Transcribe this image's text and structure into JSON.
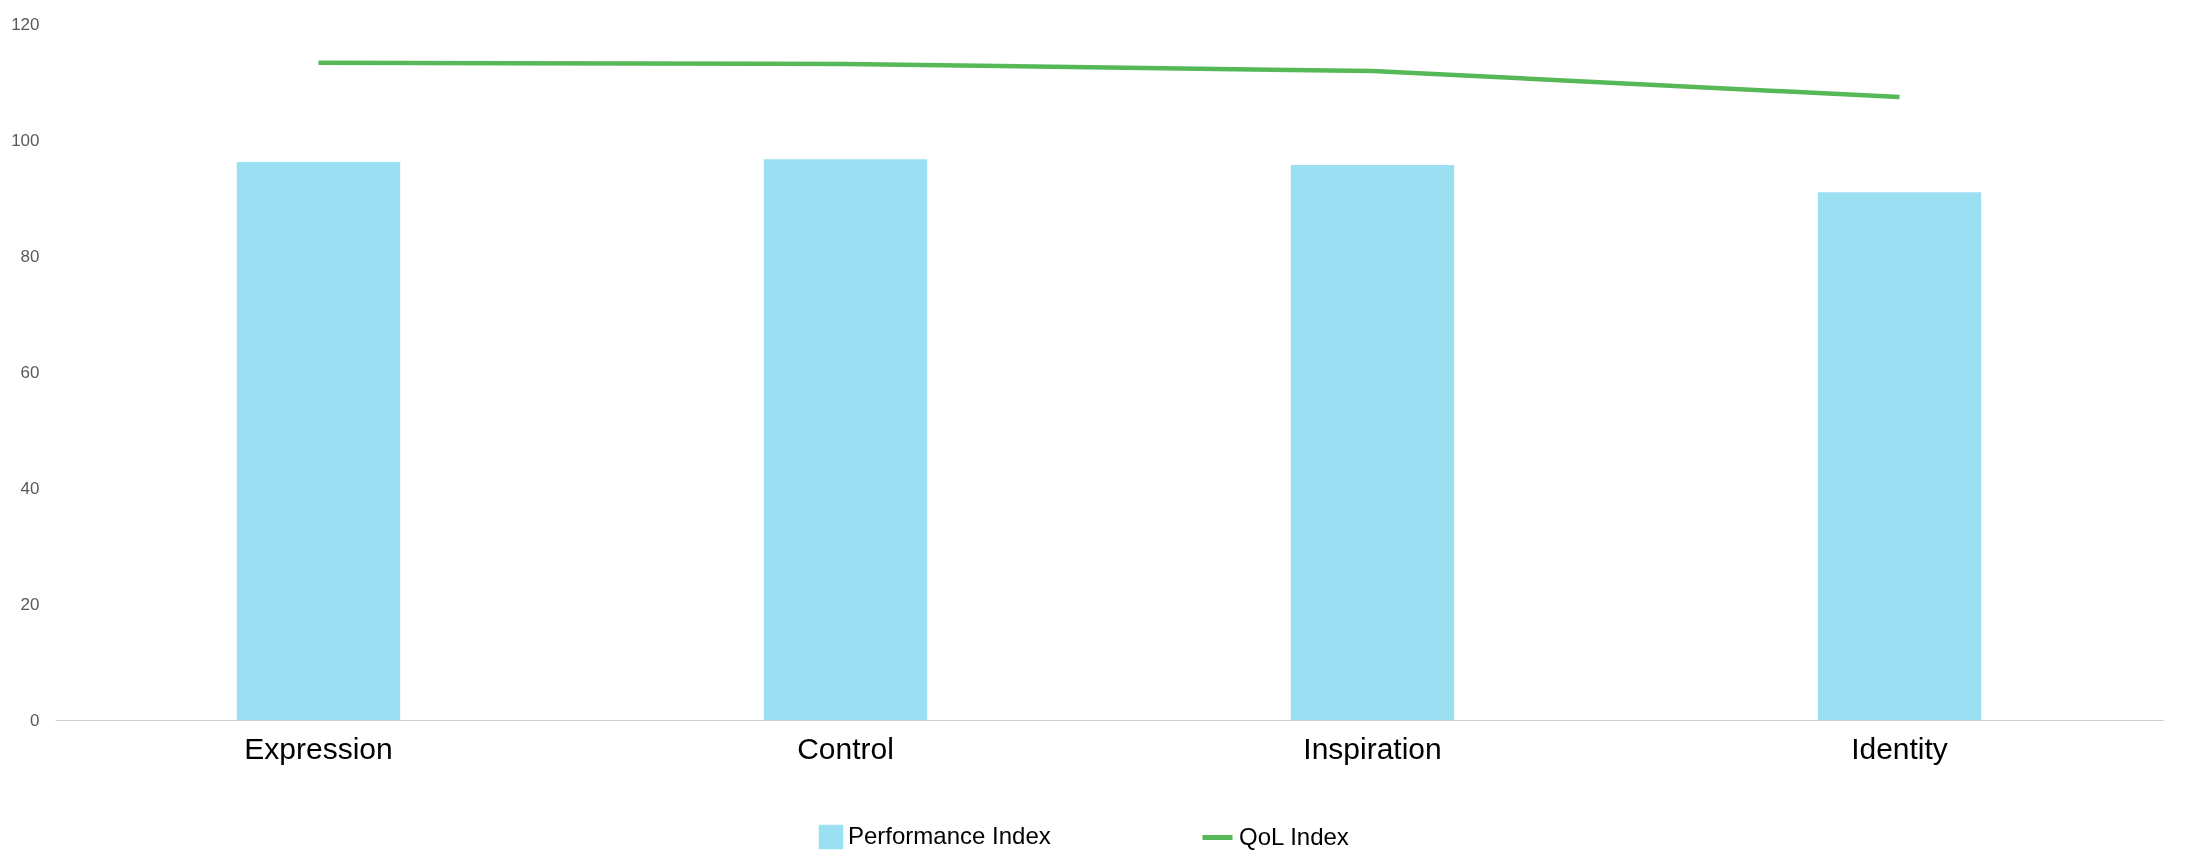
{
  "chart_data": {
    "type": "bar",
    "categories": [
      "Expression",
      "Control",
      "Inspiration",
      "Identity"
    ],
    "series": [
      {
        "name": "Performance Index",
        "color": "#9bdff3",
        "values": [
          96.2,
          96.7,
          95.7,
          91.0
        ]
      },
      {
        "name": "QoL Index",
        "type": "line",
        "color": "#56b856",
        "values": [
          113.3,
          113.1,
          111.9,
          107.4
        ]
      }
    ],
    "ylim": [
      0,
      120
    ],
    "yticks": [
      0,
      20,
      40,
      60,
      80,
      100,
      120
    ],
    "grid": false,
    "legend": "bottom",
    "marker": "none"
  }
}
